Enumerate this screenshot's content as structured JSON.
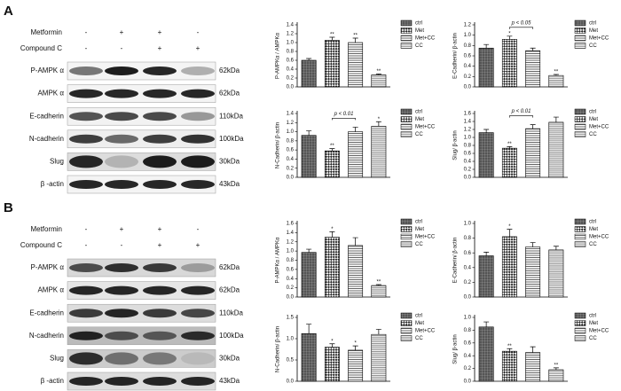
{
  "panels": [
    {
      "label": "A",
      "treatments": [
        {
          "name": "Metformin",
          "signs": [
            "-",
            "+",
            "+",
            "-"
          ]
        },
        {
          "name": "Compound C",
          "signs": [
            "-",
            "-",
            "+",
            "+"
          ]
        }
      ],
      "blots": [
        {
          "name": "P-AMPK α",
          "size": "62kDa"
        },
        {
          "name": "AMPK α",
          "size": "62kDa"
        },
        {
          "name": "E-cadherin",
          "size": "110kDa"
        },
        {
          "name": "N-cadherin",
          "size": "100kDa"
        },
        {
          "name": "Slug",
          "size": "30kDa"
        },
        {
          "name": "β -actin",
          "size": "43kDa"
        }
      ]
    },
    {
      "label": "B",
      "treatments": [
        {
          "name": "Metformin",
          "signs": [
            "-",
            "+",
            "+",
            "-"
          ]
        },
        {
          "name": "Compound C",
          "signs": [
            "-",
            "-",
            "+",
            "+"
          ]
        }
      ],
      "blots": [
        {
          "name": "P-AMPK α",
          "size": "62kDa"
        },
        {
          "name": "AMPK α",
          "size": "62kDa"
        },
        {
          "name": "E-cadherin",
          "size": "110kDa"
        },
        {
          "name": "N-cadherin",
          "size": "100kDa"
        },
        {
          "name": "Slug",
          "size": "30kDa"
        },
        {
          "name": "β -actin",
          "size": "43kDa"
        }
      ]
    }
  ],
  "chart_data": [
    {
      "type": "bar",
      "ylabel": "P-AMPKα / AMPKα",
      "categories": [
        "ctrl",
        "Met",
        "Met+CC",
        "CC"
      ],
      "values": [
        0.6,
        1.05,
        1.0,
        0.27
      ],
      "errors": [
        0.04,
        0.07,
        0.1,
        0.02
      ],
      "annotations": [
        null,
        "**",
        "**",
        "**"
      ],
      "ylim": [
        0,
        1.4
      ],
      "yticks": [
        {
          "value": 0,
          "label": "0.0"
        },
        0.2,
        0.4,
        0.6,
        0.8,
        {
          "value": 1,
          "label": "1.0"
        },
        1.2,
        1.4
      ]
    },
    {
      "type": "bar",
      "ylabel": "E-Cadherin/ β-actin",
      "categories": [
        "ctrl",
        "Met",
        "Met+CC",
        "CC"
      ],
      "values": [
        0.75,
        0.92,
        0.7,
        0.22
      ],
      "errors": [
        0.07,
        0.06,
        0.05,
        0.02
      ],
      "annotations": [
        null,
        "*",
        null,
        "**"
      ],
      "comparison_label": "p < 0.05",
      "ylim": [
        0,
        1.2
      ],
      "yticks": [
        {
          "value": 0,
          "label": "0.0"
        },
        0.2,
        0.4,
        0.6,
        0.8,
        {
          "value": 1,
          "label": "1.0"
        },
        1.2
      ]
    },
    {
      "type": "bar",
      "ylabel": "N-Cadherin/ β-actin",
      "categories": [
        "ctrl",
        "Met",
        "Met+CC",
        "CC"
      ],
      "values": [
        0.92,
        0.58,
        1.0,
        1.12
      ],
      "errors": [
        0.1,
        0.05,
        0.1,
        0.1
      ],
      "annotations": [
        null,
        "**",
        null,
        "*"
      ],
      "comparison_label": "p < 0.01",
      "ylim": [
        0,
        1.4
      ],
      "yticks": [
        {
          "value": 0,
          "label": "0.0"
        },
        0.2,
        0.4,
        0.6,
        0.8,
        {
          "value": 1,
          "label": "1.0"
        },
        1.2,
        1.4
      ]
    },
    {
      "type": "bar",
      "ylabel": "Slug/ β-actin",
      "categories": [
        "ctrl",
        "Met",
        "Met+CC",
        "CC"
      ],
      "values": [
        1.12,
        0.73,
        1.22,
        1.38
      ],
      "errors": [
        0.08,
        0.04,
        0.1,
        0.13
      ],
      "annotations": [
        null,
        "**",
        null,
        null
      ],
      "comparison_label": "p < 0.01",
      "ylim": [
        0,
        1.6
      ],
      "yticks": [
        {
          "value": 0,
          "label": "0.0"
        },
        0.2,
        0.4,
        0.6,
        0.8,
        {
          "value": 1,
          "label": "1.0"
        },
        1.2,
        1.4,
        1.6
      ]
    },
    {
      "type": "bar",
      "ylabel": "P-AMPKα / AMPKα",
      "categories": [
        "ctrl",
        "Met",
        "Met+CC",
        "CC"
      ],
      "values": [
        0.97,
        1.3,
        1.12,
        0.25
      ],
      "errors": [
        0.07,
        0.12,
        0.17,
        0.02
      ],
      "annotations": [
        null,
        "*",
        null,
        "**"
      ],
      "ylim": [
        0,
        1.6
      ],
      "yticks": [
        {
          "value": 0,
          "label": "0.0"
        },
        0.2,
        0.4,
        0.6,
        0.8,
        {
          "value": 1,
          "label": "1.0"
        },
        1.2,
        1.4,
        1.6
      ]
    },
    {
      "type": "bar",
      "ylabel": "E-Cadherin/ β-actin",
      "categories": [
        "ctrl",
        "Met",
        "Met+CC",
        "CC"
      ],
      "values": [
        0.56,
        0.82,
        0.68,
        0.64
      ],
      "errors": [
        0.05,
        0.1,
        0.06,
        0.05
      ],
      "annotations": [
        null,
        "*",
        null,
        null
      ],
      "ylim": [
        0,
        1.0
      ],
      "yticks": [
        {
          "value": 0,
          "label": "0.0"
        },
        0.2,
        0.4,
        0.6,
        0.8,
        {
          "value": 1,
          "label": "1.0"
        }
      ]
    },
    {
      "type": "bar",
      "ylabel": "N-Cadherin/ β-actin",
      "categories": [
        "ctrl",
        "Met",
        "Met+CC",
        "CC"
      ],
      "values": [
        1.12,
        0.8,
        0.73,
        1.1
      ],
      "errors": [
        0.22,
        0.08,
        0.1,
        0.12
      ],
      "annotations": [
        null,
        "*",
        "*",
        null
      ],
      "ylim": [
        0,
        1.5
      ],
      "yticks": [
        {
          "value": 0,
          "label": "0.0"
        },
        0.5,
        {
          "value": 1,
          "label": "1.0"
        },
        1.5
      ]
    },
    {
      "type": "bar",
      "ylabel": "Slug/ β-actin",
      "categories": [
        "ctrl",
        "Met",
        "Met+CC",
        "CC"
      ],
      "values": [
        0.85,
        0.47,
        0.45,
        0.18
      ],
      "errors": [
        0.08,
        0.04,
        0.09,
        0.03
      ],
      "annotations": [
        null,
        "**",
        null,
        "**"
      ],
      "ylim": [
        0,
        1.0
      ],
      "yticks": [
        {
          "value": 0,
          "label": "0.0"
        },
        0.2,
        0.4,
        0.6,
        0.8,
        {
          "value": 1,
          "label": "1.0"
        }
      ]
    }
  ]
}
